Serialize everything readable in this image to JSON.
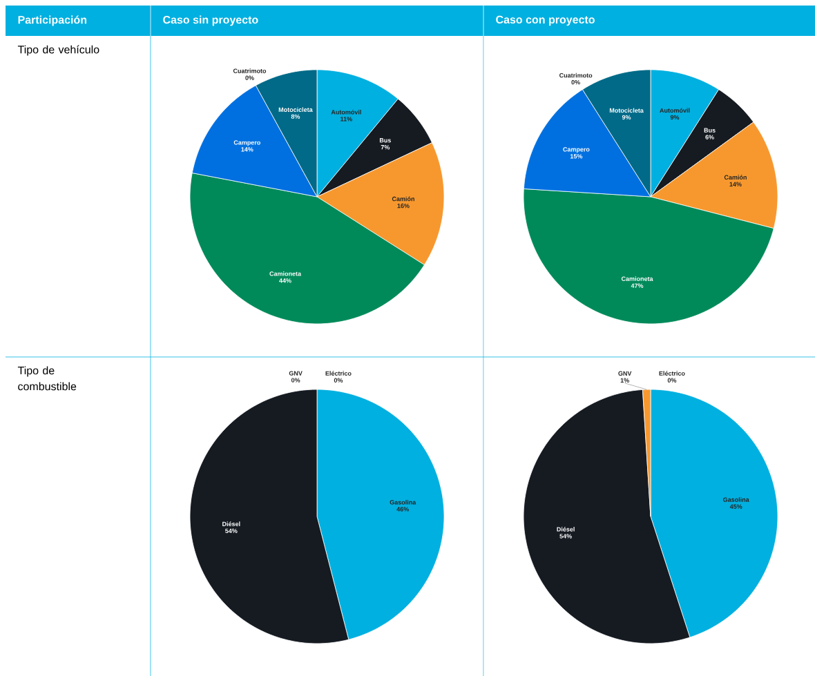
{
  "chart_data": [
    {
      "type": "pie",
      "annotations": [
        "Participación",
        "Caso sin proyecto",
        "Caso con proyecto",
        "Tipo de vehículo",
        "Tipo de combustible"
      ],
      "categories": [
        "Automóvil",
        "Bus",
        "Camión",
        "Camioneta",
        "Campero",
        "Cuatrimoto",
        "Motocicleta"
      ],
      "values": [
        11,
        7,
        16,
        44,
        14,
        0,
        8
      ],
      "value_labels": [
        "11%",
        "7%",
        "16%",
        "44%",
        "14%",
        "0%",
        "8%"
      ],
      "colors": [
        "#00b0e0",
        "#161b22",
        "#f7982e",
        "#008a5a",
        "#0070e0",
        "#8c8c8c",
        "#006a88"
      ]
    },
    {
      "type": "pie",
      "categories": [
        "Automóvil",
        "Bus",
        "Camión",
        "Camioneta",
        "Campero",
        "Cuatrimoto",
        "Motocicleta"
      ],
      "values": [
        9,
        6,
        14,
        47,
        15,
        0,
        9
      ],
      "value_labels": [
        "9%",
        "6%",
        "14%",
        "47%",
        "15%",
        "0%",
        "9%"
      ],
      "colors": [
        "#00b0e0",
        "#161b22",
        "#f7982e",
        "#008a5a",
        "#0070e0",
        "#8c8c8c",
        "#006a88"
      ]
    },
    {
      "type": "pie",
      "categories": [
        "Gasolina",
        "Diésel",
        "GNV",
        "Eléctrico"
      ],
      "values": [
        46,
        54,
        0,
        0
      ],
      "value_labels": [
        "46%",
        "54%",
        "0%",
        "0%"
      ],
      "colors": [
        "#00b0e0",
        "#161b22",
        "#f7982e",
        "#8c8c8c"
      ]
    },
    {
      "type": "pie",
      "categories": [
        "Gasolina",
        "Diésel",
        "GNV",
        "Eléctrico"
      ],
      "values": [
        45,
        54,
        1,
        0
      ],
      "value_labels": [
        "45%",
        "54%",
        "1%",
        "0%"
      ],
      "colors": [
        "#00b0e0",
        "#161b22",
        "#f7982e",
        "#8c8c8c"
      ]
    }
  ]
}
